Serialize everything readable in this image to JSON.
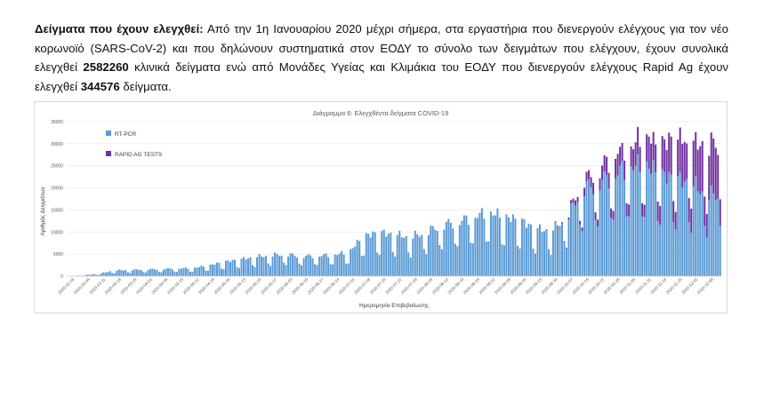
{
  "intro": {
    "heading": "Δείγματα που έχουν ελεγχθεί:",
    "text1": " Από την 1η Ιανουαρίου 2020 μέχρι σήμερα, στα εργαστήρια που διενεργούν ελέγχους για τον νέο κορωνοϊό (SARS-CoV-2) και που δηλώνουν συστηματικά στον ΕΟΔΥ το σύνολο των δειγμάτων που ελέγχουν, έχουν συνολικά ελεγχθεί ",
    "pcr_total": "2582260",
    "text2": " κλινικά δείγματα ενώ από Μονάδες Υγείας και Κλιμάκια του ΕΟΔΥ που διενεργούν ελέγχους Rapid Ag έχουν ελεγχθεί ",
    "rapid_total": "344576",
    "text3": " δείγματα."
  },
  "chart_data": {
    "type": "bar",
    "stacked": true,
    "title": "Διάγραμμα 6: Ελεγχθέντα δείγματα COVID-19",
    "xlabel": "Ημερομηνία Επιβεβαίωσης",
    "ylabel": "Αριθμός Δειγμάτων",
    "ylim": [
      0,
      35000
    ],
    "yticks": [
      "0",
      "5000",
      "10000",
      "15000",
      "20000",
      "25000",
      "30000",
      "35000"
    ],
    "xticks": [
      "2020-02-26",
      "2020-03-04",
      "2020-03-11",
      "2020-03-18",
      "2020-03-25",
      "2020-04-01",
      "2020-04-08",
      "2020-04-15",
      "2020-04-22",
      "2020-04-29",
      "2020-05-06",
      "2020-05-13",
      "2020-05-20",
      "2020-05-27",
      "2020-06-03",
      "2020-06-10",
      "2020-06-17",
      "2020-06-24",
      "2020-07-01",
      "2020-07-08",
      "2020-07-15",
      "2020-07-22",
      "2020-07-29",
      "2020-08-05",
      "2020-08-12",
      "2020-08-19",
      "2020-08-26",
      "2020-09-02",
      "2020-09-09",
      "2020-09-16",
      "2020-09-23",
      "2020-09-30",
      "2020-10-07",
      "2020-10-14",
      "2020-10-21",
      "2020-10-28",
      "2020-11-04",
      "2020-11-11",
      "2020-11-18",
      "2020-11-25",
      "2020-12-02",
      "2020-12-09"
    ],
    "legend_position": "top-left inside plot",
    "grid": "horizontal",
    "series": [
      {
        "name": "RT-PCR",
        "color": "#5b9bd5",
        "weekly_levels": [
          0,
          150,
          500,
          1200,
          1300,
          1400,
          1500,
          1600,
          1700,
          2200,
          3000,
          3500,
          4000,
          4400,
          4600,
          4200,
          4300,
          4500,
          5000,
          8500,
          9200,
          8700,
          8200,
          9300,
          10800,
          11500,
          12500,
          13500,
          12500,
          11800,
          10000,
          9500,
          12000,
          18500,
          19500,
          21500,
          23000,
          23500,
          21500,
          20500,
          19500,
          17000
        ]
      },
      {
        "name": "RAPID AG TESTS",
        "color": "#7030a0",
        "weekly_levels": [
          0,
          0,
          0,
          0,
          0,
          0,
          0,
          0,
          0,
          0,
          0,
          0,
          0,
          0,
          0,
          0,
          0,
          0,
          0,
          0,
          0,
          0,
          0,
          0,
          0,
          0,
          0,
          0,
          0,
          0,
          0,
          0,
          300,
          1500,
          2800,
          3800,
          4500,
          5500,
          7000,
          8000,
          9000,
          10500
        ]
      }
    ]
  }
}
